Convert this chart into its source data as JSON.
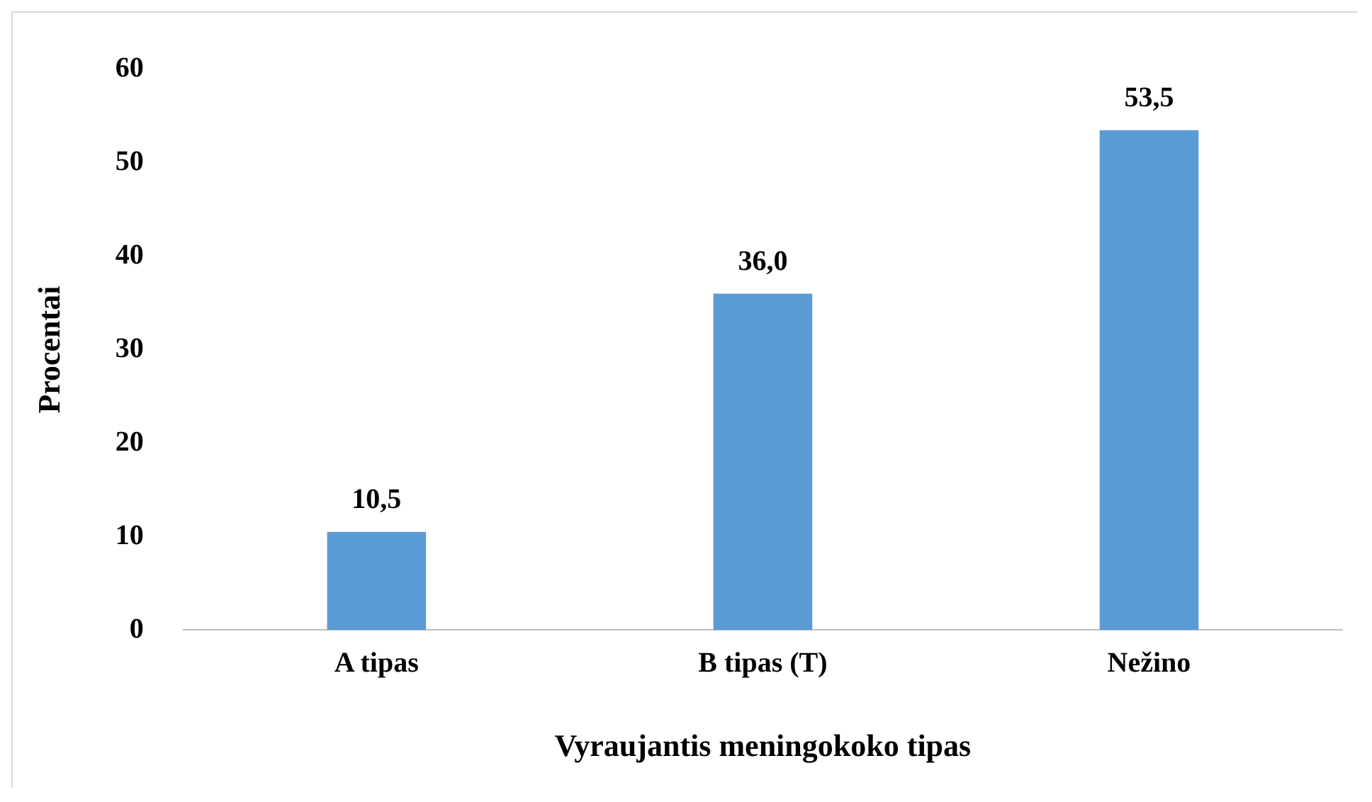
{
  "chart_data": {
    "type": "bar",
    "xlabel": "Vyraujantis meningokoko tipas",
    "ylabel": "Procentai",
    "categories": [
      "A tipas",
      "B tipas (T)",
      "Nežino"
    ],
    "values": [
      10.5,
      36.0,
      53.5
    ],
    "value_labels": [
      "10,5",
      "36,0",
      "53,5"
    ],
    "color": "#5b9bd5",
    "ylim": [
      0,
      60
    ],
    "yticks": [
      0,
      10,
      20,
      30,
      40,
      50,
      60
    ],
    "grid": false,
    "legend": false
  }
}
